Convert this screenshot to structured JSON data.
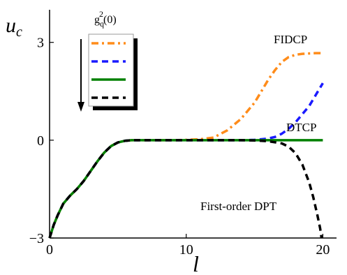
{
  "chart_data": {
    "type": "line",
    "xlabel": "l",
    "ylabel_main": "u",
    "ylabel_sub": "c",
    "xlim": [
      0,
      21
    ],
    "ylim": [
      -3,
      4
    ],
    "x_ticks": [
      0,
      10,
      20
    ],
    "y_ticks": [
      -3,
      0,
      3
    ],
    "grid": false,
    "legend": {
      "title_main": "g",
      "title_sup": "2",
      "title_sub": "q",
      "title_arg": "(0)",
      "placement": "top-left"
    },
    "annotations": {
      "fidcp": "FIDCP",
      "dtcp": "DTCP",
      "dpt": "First-order DPT"
    },
    "series": [
      {
        "color": "#ff8c1a",
        "dash": "dashdot",
        "x": [
          0,
          0.3,
          0.6,
          1,
          1.5,
          2,
          2.5,
          3,
          3.5,
          4,
          4.5,
          5,
          5.5,
          6,
          7,
          8,
          9,
          10,
          11,
          12,
          13,
          14,
          15,
          15.5,
          16,
          16.5,
          17,
          17.5,
          18,
          18.5,
          19,
          19.5,
          20
        ],
        "y": [
          -3,
          -2.6,
          -2.3,
          -1.95,
          -1.7,
          -1.5,
          -1.25,
          -0.95,
          -0.65,
          -0.38,
          -0.18,
          -0.07,
          -0.02,
          0,
          0,
          0,
          0,
          0.01,
          0.03,
          0.08,
          0.3,
          0.65,
          1.15,
          1.5,
          1.85,
          2.15,
          2.4,
          2.55,
          2.62,
          2.65,
          2.66,
          2.67,
          2.67
        ]
      },
      {
        "color": "#1a1aff",
        "dash": "dashed",
        "x": [
          0,
          0.3,
          0.6,
          1,
          1.5,
          2,
          2.5,
          3,
          3.5,
          4,
          4.5,
          5,
          5.5,
          6,
          7,
          8,
          9,
          10,
          11,
          12,
          13,
          14,
          15,
          16,
          16.5,
          17,
          17.5,
          18,
          18.5,
          19,
          19.5,
          20
        ],
        "y": [
          -3,
          -2.6,
          -2.3,
          -1.95,
          -1.7,
          -1.5,
          -1.25,
          -0.95,
          -0.65,
          -0.38,
          -0.18,
          -0.07,
          -0.02,
          0,
          0,
          0,
          0,
          0,
          0,
          0,
          0,
          0,
          0.01,
          0.05,
          0.1,
          0.2,
          0.35,
          0.55,
          0.8,
          1.05,
          1.4,
          1.75
        ]
      },
      {
        "color": "#008000",
        "dash": "solid",
        "x": [
          0,
          0.3,
          0.6,
          1,
          1.5,
          2,
          2.5,
          3,
          3.5,
          4,
          4.5,
          5,
          5.5,
          6,
          7,
          8,
          9,
          10,
          12,
          14,
          16,
          18,
          20
        ],
        "y": [
          -3,
          -2.6,
          -2.3,
          -1.95,
          -1.7,
          -1.5,
          -1.25,
          -0.95,
          -0.65,
          -0.38,
          -0.18,
          -0.07,
          -0.02,
          0,
          0,
          0,
          0,
          0,
          0,
          0,
          0,
          0,
          0
        ]
      },
      {
        "color": "#000000",
        "dash": "dashed",
        "x": [
          0,
          0.3,
          0.6,
          1,
          1.5,
          2,
          2.5,
          3,
          3.5,
          4,
          4.5,
          5,
          5.5,
          6,
          7,
          8,
          9,
          10,
          12,
          14,
          15,
          16,
          17,
          17.5,
          18,
          18.5,
          19,
          19.3,
          19.6,
          19.8,
          19.9
        ],
        "y": [
          -3,
          -2.6,
          -2.3,
          -1.95,
          -1.7,
          -1.5,
          -1.25,
          -0.95,
          -0.65,
          -0.38,
          -0.18,
          -0.07,
          -0.02,
          0,
          0,
          0,
          0,
          0,
          0,
          0,
          -0.01,
          -0.03,
          -0.1,
          -0.2,
          -0.4,
          -0.75,
          -1.3,
          -1.75,
          -2.3,
          -2.7,
          -3
        ]
      }
    ]
  }
}
